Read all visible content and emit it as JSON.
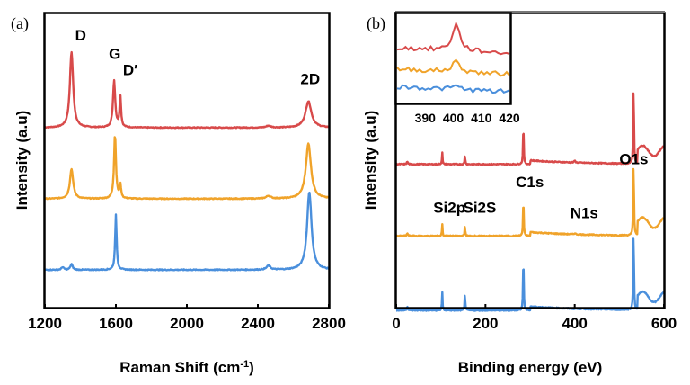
{
  "chart_data": [
    {
      "panel": "(a)",
      "type": "line",
      "title": "",
      "xlabel": "Raman Shift (cm",
      "xlabel_sup": "-1",
      "xlabel_close": ")",
      "ylabel": "Intensity (a.u)",
      "xlim": [
        1200,
        2800
      ],
      "xticks": [
        1200,
        1600,
        2000,
        2400,
        2800
      ],
      "yticks": [],
      "grid": false,
      "legend": "none",
      "colors": {
        "red": "#d84a4a",
        "orange": "#f0a32a",
        "blue": "#4a8fdc"
      },
      "series": [
        {
          "name": "red",
          "color": "#d84a4a",
          "offset": 0.62,
          "peaks": [
            {
              "x": 1350,
              "height": 0.33,
              "width": 22
            },
            {
              "x": 1590,
              "height": 0.205,
              "width": 15
            },
            {
              "x": 1625,
              "height": 0.135,
              "width": 10
            },
            {
              "x": 2460,
              "height": 0.008,
              "width": 30
            },
            {
              "x": 2685,
              "height": 0.115,
              "width": 40
            }
          ]
        },
        {
          "name": "orange",
          "color": "#f0a32a",
          "offset": 0.31,
          "peaks": [
            {
              "x": 1350,
              "height": 0.13,
              "width": 22
            },
            {
              "x": 1595,
              "height": 0.28,
              "width": 13
            },
            {
              "x": 1625,
              "height": 0.06,
              "width": 10
            },
            {
              "x": 2460,
              "height": 0.012,
              "width": 30
            },
            {
              "x": 2685,
              "height": 0.24,
              "width": 35
            }
          ]
        },
        {
          "name": "blue",
          "color": "#4a8fdc",
          "offset": 0.0,
          "peaks": [
            {
              "x": 1300,
              "height": 0.012,
              "width": 15
            },
            {
              "x": 1350,
              "height": 0.025,
              "width": 15
            },
            {
              "x": 1600,
              "height": 0.24,
              "width": 10
            },
            {
              "x": 2460,
              "height": 0.018,
              "width": 25
            },
            {
              "x": 2690,
              "height": 0.34,
              "width": 30
            }
          ]
        }
      ],
      "annotations": [
        {
          "text": "D",
          "x": 1370,
          "y": 1.0
        },
        {
          "text": "G",
          "x": 1560,
          "y": 0.92
        },
        {
          "text": "D′",
          "x": 1640,
          "y": 0.85
        },
        {
          "text": "2D",
          "x": 2640,
          "y": 0.81
        }
      ]
    },
    {
      "panel": "(b)",
      "type": "line",
      "title": "",
      "xlabel": "Binding energy (eV)",
      "ylabel": "Intensity (a.u)",
      "xlim": [
        0,
        600
      ],
      "xticks": [
        0,
        200,
        400,
        600
      ],
      "yticks": [],
      "grid": false,
      "legend": "none",
      "series": [
        {
          "name": "red",
          "color": "#d84a4a",
          "offset": 0.57,
          "peaks": [
            {
              "x": 25,
              "height": 0.01,
              "width": 3
            },
            {
              "x": 103,
              "height": 0.05,
              "width": 1.5
            },
            {
              "x": 154,
              "height": 0.04,
              "width": 1.5
            },
            {
              "x": 285,
              "height": 0.17,
              "width": 1.8
            },
            {
              "x": 400,
              "height": 0.008,
              "width": 3
            },
            {
              "x": 532,
              "height": 0.33,
              "width": 1.8
            }
          ]
        },
        {
          "name": "orange",
          "color": "#f0a32a",
          "offset": 0.29,
          "peaks": [
            {
              "x": 25,
              "height": 0.01,
              "width": 3
            },
            {
              "x": 103,
              "height": 0.05,
              "width": 1.5
            },
            {
              "x": 154,
              "height": 0.045,
              "width": 1.5
            },
            {
              "x": 285,
              "height": 0.16,
              "width": 1.8
            },
            {
              "x": 400,
              "height": 0.005,
              "width": 3
            },
            {
              "x": 532,
              "height": 0.31,
              "width": 1.8
            }
          ]
        },
        {
          "name": "blue",
          "color": "#4a8fdc",
          "offset": 0.0,
          "peaks": [
            {
              "x": 25,
              "height": 0.015,
              "width": 3
            },
            {
              "x": 103,
              "height": 0.075,
              "width": 1.5
            },
            {
              "x": 154,
              "height": 0.075,
              "width": 1.5
            },
            {
              "x": 285,
              "height": 0.23,
              "width": 1.8
            },
            {
              "x": 532,
              "height": 0.33,
              "width": 1.8
            }
          ]
        }
      ],
      "annotations": [
        {
          "text": "Si2p",
          "x": 83,
          "y": 0.38
        },
        {
          "text": "Si2S",
          "x": 150,
          "y": 0.38
        },
        {
          "text": "C1s",
          "x": 268,
          "y": 0.48
        },
        {
          "text": "N1s",
          "x": 390,
          "y": 0.36
        },
        {
          "text": "O1s",
          "x": 500,
          "y": 0.57
        }
      ],
      "inset": {
        "type": "line",
        "xlim": [
          380,
          420
        ],
        "xticks": [
          390,
          400,
          410,
          420
        ],
        "series": [
          {
            "name": "red",
            "color": "#d84a4a",
            "offset": 0.62,
            "peak": {
              "x": 401,
              "height": 0.3
            }
          },
          {
            "name": "orange",
            "color": "#f0a32a",
            "offset": 0.38,
            "peak": {
              "x": 401,
              "height": 0.12
            }
          },
          {
            "name": "blue",
            "color": "#4a8fdc",
            "offset": 0.18,
            "peak": {
              "x": 401,
              "height": 0.04
            }
          }
        ]
      }
    }
  ]
}
